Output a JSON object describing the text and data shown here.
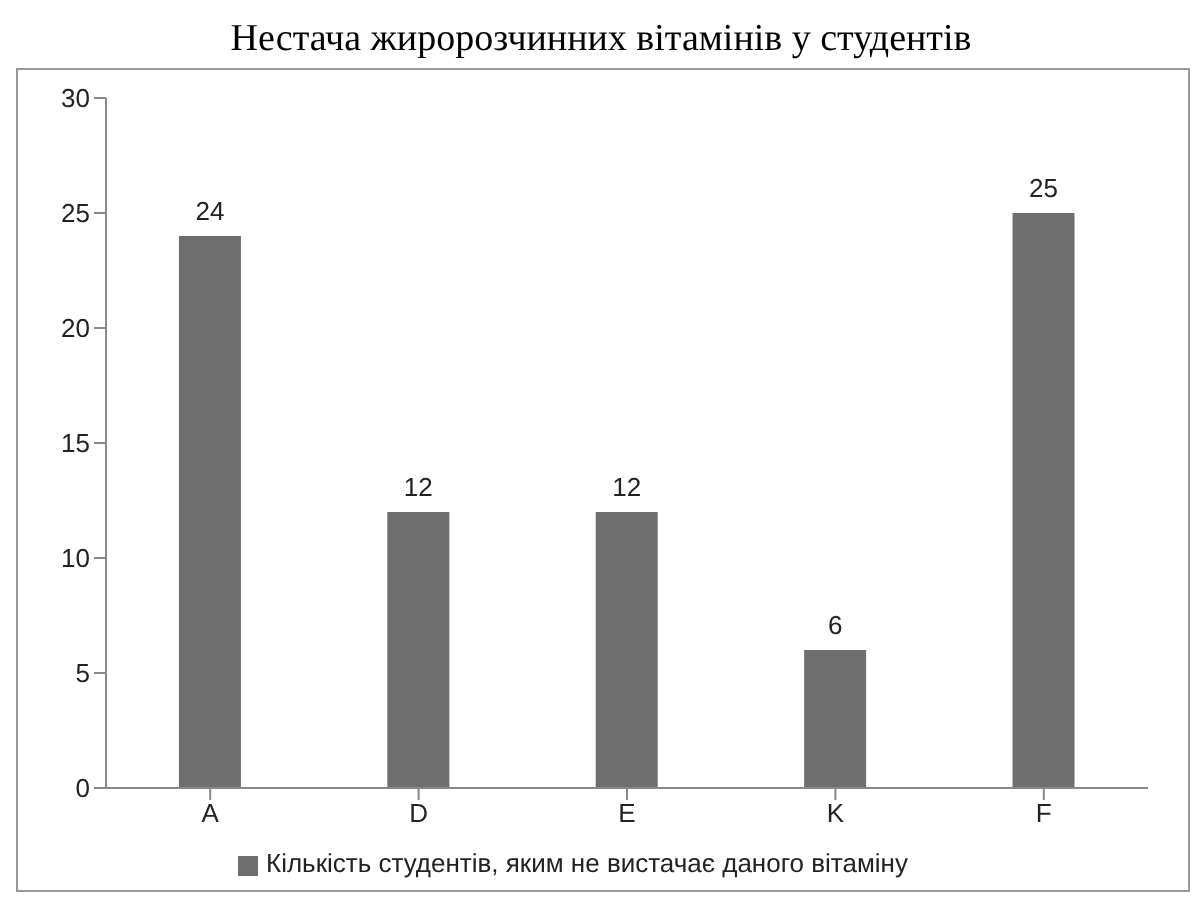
{
  "chart_data": {
    "type": "bar",
    "title": "Нестача жиророзчинних вітамінів у студентів",
    "categories": [
      "A",
      "D",
      "E",
      "K",
      "F"
    ],
    "series": [
      {
        "name": "Кількість студентів, яким не вистачає даного вітаміну",
        "color": "#6e6e6e",
        "values": [
          24,
          12,
          12,
          6,
          25
        ]
      }
    ],
    "ylim": [
      0,
      30
    ],
    "yticks": [
      0,
      5,
      10,
      15,
      20,
      25,
      30
    ],
    "grid": false,
    "legend": "bottom",
    "data_labels": true
  }
}
